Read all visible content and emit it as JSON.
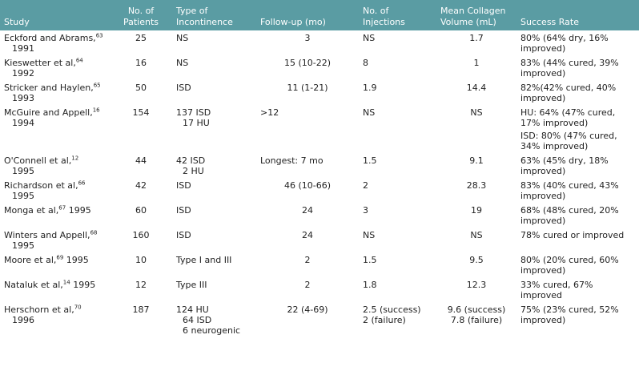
{
  "table": {
    "header": [
      "Study",
      "No. of Patients",
      "Type of Incontinence",
      "Follow-up (mo)",
      "No. of Injections",
      "Mean Collagen Volume (mL)",
      "Success Rate"
    ],
    "rows": [
      {
        "study": {
          "name": "Eckford and Abrams,",
          "ref": "63",
          "year": "1991"
        },
        "patients": "25",
        "type": [
          "NS"
        ],
        "followup": "3",
        "injections": [
          "NS"
        ],
        "collagen": [
          "1.7"
        ],
        "success": [
          "80% (64% dry, 16% improved)"
        ]
      },
      {
        "study": {
          "name": "Kieswetter et al,",
          "ref": "64",
          "year": "1992"
        },
        "patients": "16",
        "type": [
          "NS"
        ],
        "followup": "15 (10-22)",
        "injections": [
          "8"
        ],
        "collagen": [
          "1"
        ],
        "success": [
          "83% (44% cured, 39% improved)"
        ]
      },
      {
        "study": {
          "name": "Stricker and Haylen,",
          "ref": "65",
          "year": "1993"
        },
        "patients": "50",
        "type": [
          "ISD"
        ],
        "followup": "11 (1-21)",
        "injections": [
          "1.9"
        ],
        "collagen": [
          "14.4"
        ],
        "success": [
          "82%(42% cured, 40% improved)"
        ]
      },
      {
        "study": {
          "name": "McGuire and Appell,",
          "ref": "16",
          "year": "1994"
        },
        "patients": "154",
        "type": [
          "137 ISD",
          "17 HU"
        ],
        "followup": ">12",
        "injections": [
          "NS"
        ],
        "collagen": [
          "NS"
        ],
        "success": [
          "HU: 64% (47% cured, 17% improved)",
          "ISD: 80% (47% cured, 34% improved)"
        ]
      },
      {
        "study": {
          "name": "O'Connell et al,",
          "ref": "12",
          "year": "1995"
        },
        "patients": "44",
        "type": [
          "42 ISD",
          "2 HU"
        ],
        "followup": "Longest: 7 mo",
        "injections": [
          "1.5"
        ],
        "collagen": [
          "9.1"
        ],
        "success": [
          "63% (45% dry, 18% improved)"
        ]
      },
      {
        "study": {
          "name": "Richardson et al,",
          "ref": "66",
          "year": "1995"
        },
        "patients": "42",
        "type": [
          "ISD"
        ],
        "followup": "46 (10-66)",
        "injections": [
          "2"
        ],
        "collagen": [
          "28.3"
        ],
        "success": [
          "83% (40% cured, 43% improved)"
        ]
      },
      {
        "study": {
          "name": "Monga et al,",
          "ref": "67",
          "year": "1995"
        },
        "patients": "60",
        "type": [
          "ISD"
        ],
        "followup": "24",
        "injections": [
          "3"
        ],
        "collagen": [
          "19"
        ],
        "success": [
          "68% (48% cured, 20% improved)"
        ]
      },
      {
        "study": {
          "name": "Winters and Appell,",
          "ref": "68",
          "year": "1995"
        },
        "patients": "160",
        "type": [
          "ISD"
        ],
        "followup": "24",
        "injections": [
          "NS"
        ],
        "collagen": [
          "NS"
        ],
        "success": [
          "78% cured or improved"
        ]
      },
      {
        "study": {
          "name": "Moore et al,",
          "ref": "69",
          "year": "1995"
        },
        "patients": "10",
        "type": [
          "Type I and III"
        ],
        "followup": "2",
        "injections": [
          "1.5"
        ],
        "collagen": [
          "9.5"
        ],
        "success": [
          "80% (20% cured, 60% improved)"
        ]
      },
      {
        "study": {
          "name": "Nataluk et al,",
          "ref": "14",
          "year": "1995"
        },
        "patients": "12",
        "type": [
          "Type III"
        ],
        "followup": "2",
        "injections": [
          "1.8"
        ],
        "collagen": [
          "12.3"
        ],
        "success": [
          "33% cured, 67% improved"
        ]
      },
      {
        "study": {
          "name": "Herschorn et al,",
          "ref": "70",
          "year": "1996"
        },
        "patients": "187",
        "type": [
          "124 HU",
          "64 ISD",
          "6 neurogenic"
        ],
        "followup": "22 (4-69)",
        "injections": [
          "2.5 (success)",
          "2 (failure)"
        ],
        "collagen": [
          "9.6 (success)",
          "7.8 (failure)"
        ],
        "success": [
          "75% (23% cured, 52% improved)"
        ]
      }
    ]
  }
}
